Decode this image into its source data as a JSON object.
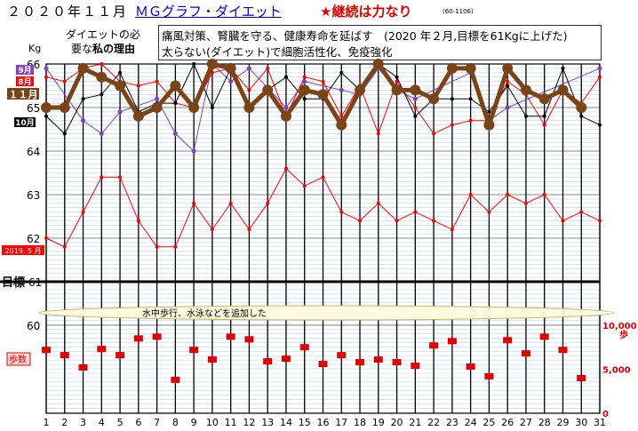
{
  "header": {
    "year_month": "２０２０年１１月",
    "link_text": "ＭＧグラフ・ダイエット",
    "motto": "★継続は力なり",
    "code": "(60-1106)"
  },
  "reason": {
    "label_line1": "ダイエットの必",
    "label_line2_prefix": "要な",
    "label_line2_bold": "私の理由",
    "line1": "痛風対策、腎臓を守る、健康寿命を延ばす　(2020 年２月,目標を61Kgに上げた)",
    "line2": "太らない(ダイエット)で細胞活性化、免疫強化"
  },
  "chart_data": {
    "type": "line",
    "y_unit": "Kg",
    "x": [
      1,
      2,
      3,
      4,
      5,
      6,
      7,
      8,
      9,
      10,
      11,
      12,
      13,
      14,
      15,
      16,
      17,
      18,
      19,
      20,
      21,
      22,
      23,
      24,
      25,
      26,
      27,
      28,
      29,
      30,
      31
    ],
    "y_ticks": [
      "66",
      "65",
      "64",
      "63",
      "62",
      "61",
      "60"
    ],
    "weight_ylim": [
      60,
      66
    ],
    "target_value": 61,
    "target_label": "目標",
    "series": [
      {
        "name": "9月",
        "color": "#8040c0",
        "values": [
          65.9,
          null,
          64.7,
          64.4,
          64.9,
          null,
          65.2,
          64.4,
          64.0,
          66.0,
          65.6,
          65.9,
          null,
          65.0,
          65.6,
          null,
          65.4,
          65.3,
          65.9,
          65.4,
          65.2,
          null,
          null,
          65.8,
          64.7,
          65.0,
          null,
          null,
          null,
          null,
          65.9
        ]
      },
      {
        "name": "8月",
        "color": "#ff0000",
        "values": [
          65.7,
          65.6,
          65.9,
          66.0,
          65.6,
          65.5,
          65.6,
          65.1,
          65.0,
          65.8,
          65.9,
          65.4,
          65.9,
          64.8,
          65.7,
          65.6,
          64.8,
          65.5,
          64.4,
          65.6,
          65.0,
          64.4,
          64.6,
          64.7,
          64.7,
          65.6,
          65.3,
          64.6,
          65.4,
          65.1,
          65.7
        ]
      },
      {
        "name": "10月",
        "color": "#000000",
        "values": [
          64.8,
          64.4,
          65.2,
          65.3,
          65.8,
          64.9,
          65.1,
          65.1,
          66.0,
          65.0,
          65.9,
          65.0,
          65.4,
          65.7,
          65.2,
          65.2,
          65.8,
          65.4,
          66.0,
          65.7,
          64.8,
          65.2,
          65.2,
          65.2,
          64.9,
          65.5,
          64.8,
          64.8,
          65.9,
          64.8,
          64.6
        ]
      },
      {
        "name": "１１月",
        "color": "#7a4417",
        "values": [
          65.0,
          65.0,
          65.9,
          65.7,
          65.5,
          64.8,
          65.0,
          65.5,
          65.0,
          66.0,
          65.9,
          65.0,
          65.4,
          64.8,
          65.4,
          65.3,
          64.6,
          65.4,
          66.0,
          65.4,
          65.4,
          65.2,
          65.9,
          65.9,
          64.6,
          65.9,
          65.4,
          65.2,
          65.4,
          65.0,
          null
        ]
      },
      {
        "name": "2019. 5 月",
        "color": "#ff0000",
        "values": [
          62.0,
          61.8,
          62.6,
          63.4,
          63.4,
          62.4,
          61.8,
          61.8,
          62.8,
          62.2,
          62.8,
          62.2,
          62.8,
          63.6,
          63.2,
          63.4,
          62.6,
          62.4,
          62.8,
          62.4,
          62.6,
          62.4,
          62.2,
          63.0,
          62.6,
          63.0,
          62.8,
          63.0,
          62.4,
          62.6,
          62.4
        ]
      }
    ],
    "note": "水中歩行、水泳などを追加した",
    "steps": {
      "name": "歩数",
      "unit": "歩",
      "ticks": [
        "10,000",
        "5,000",
        "0"
      ],
      "ylim": [
        0,
        10000
      ],
      "values": [
        7200,
        6600,
        5200,
        7300,
        6600,
        8500,
        8700,
        3800,
        7200,
        6100,
        8700,
        8400,
        5900,
        6200,
        7500,
        5600,
        6600,
        5800,
        6100,
        5800,
        5400,
        7700,
        8200,
        5300,
        4200,
        8300,
        6800,
        8700,
        7200,
        4000,
        null
      ]
    }
  }
}
